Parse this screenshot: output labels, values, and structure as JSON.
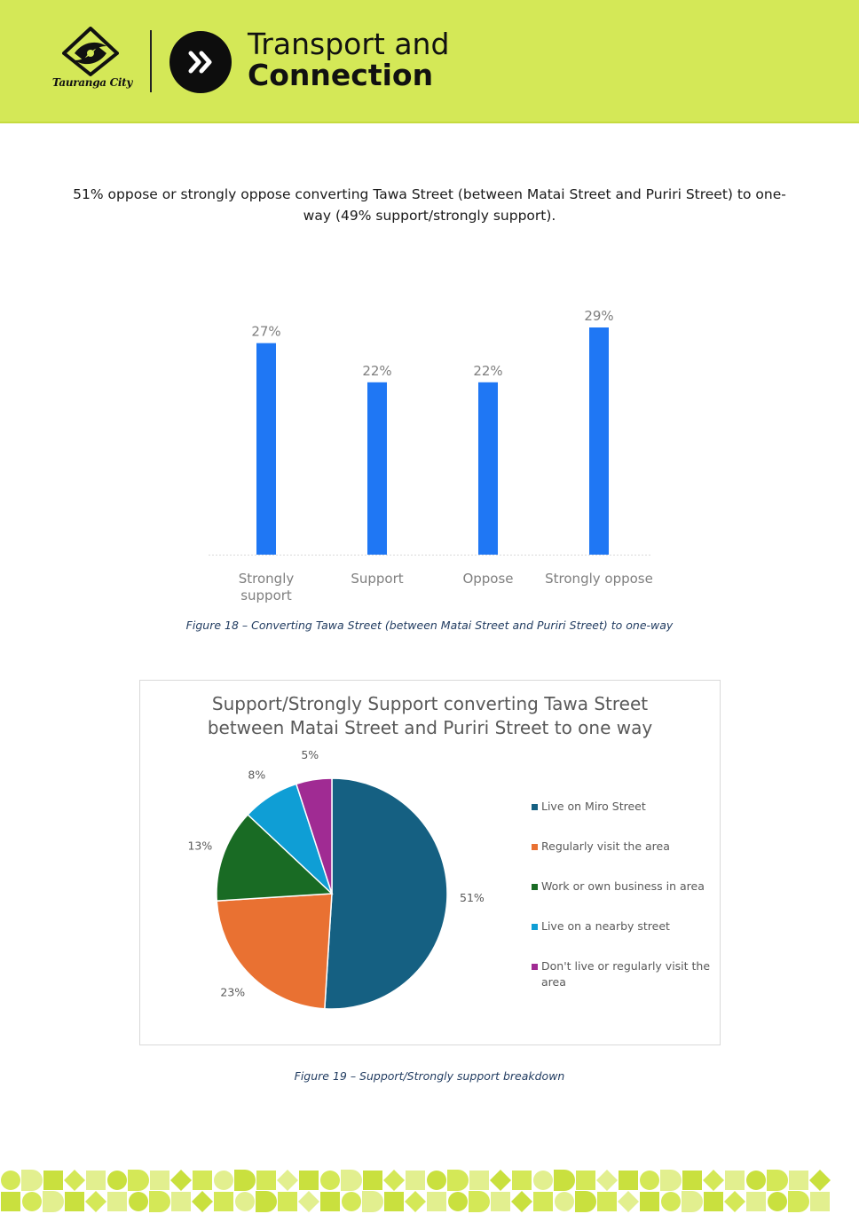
{
  "header": {
    "org_name": "Tauranga City",
    "title_line1": "Transport and",
    "title_line2": "Connection",
    "background_color": "#d4e857",
    "badge_icon": "double-chevron-right-icon"
  },
  "intro_text": "51% oppose or strongly oppose converting Tawa Street (between Matai Street and Puriri Street) to one-way (49% support/strongly support).",
  "figure18_caption": "Figure 18 – Converting Tawa Street (between Matai Street and Puriri Street) to one-way",
  "figure19_caption": "Figure 19 – Support/Strongly support breakdown",
  "chart_data": [
    {
      "type": "bar",
      "categories": [
        "Strongly support",
        "Support",
        "Oppose",
        "Strongly oppose"
      ],
      "category_label_lines": [
        [
          "Strongly",
          "support"
        ],
        [
          "Support"
        ],
        [
          "Oppose"
        ],
        [
          "Strongly oppose"
        ]
      ],
      "values": [
        27,
        22,
        22,
        29
      ],
      "data_labels": [
        "27%",
        "22%",
        "22%",
        "29%"
      ],
      "unit": "%",
      "ylim": [
        0,
        29
      ],
      "color": "#1f77f4",
      "grid": false,
      "title": "",
      "xlabel": "",
      "ylabel": ""
    },
    {
      "type": "pie",
      "title": "Support/Strongly Support converting Tawa Street between Matai Street and Puriri Street to one way",
      "title_lines": [
        "Support/Strongly Support converting Tawa Street",
        "between Matai Street and Puriri Street to one way"
      ],
      "categories": [
        "Live on Miro Street",
        "Regularly visit the area",
        "Work or own business in area",
        "Live on a nearby street",
        "Don't live or regularly visit the area"
      ],
      "legend_lines": [
        [
          "Live on Miro Street"
        ],
        [
          "Regularly visit the area"
        ],
        [
          "Work or own business in area"
        ],
        [
          "Live on a nearby street"
        ],
        [
          "Don't live or regularly visit the",
          "area"
        ]
      ],
      "values": [
        51,
        23,
        13,
        8,
        5
      ],
      "data_labels": [
        "51%",
        "23%",
        "13%",
        "8%",
        "5%"
      ],
      "colors": [
        "#156082",
        "#e97132",
        "#196b24",
        "#0f9ed5",
        "#a02b93"
      ],
      "legend_position": "right"
    }
  ]
}
